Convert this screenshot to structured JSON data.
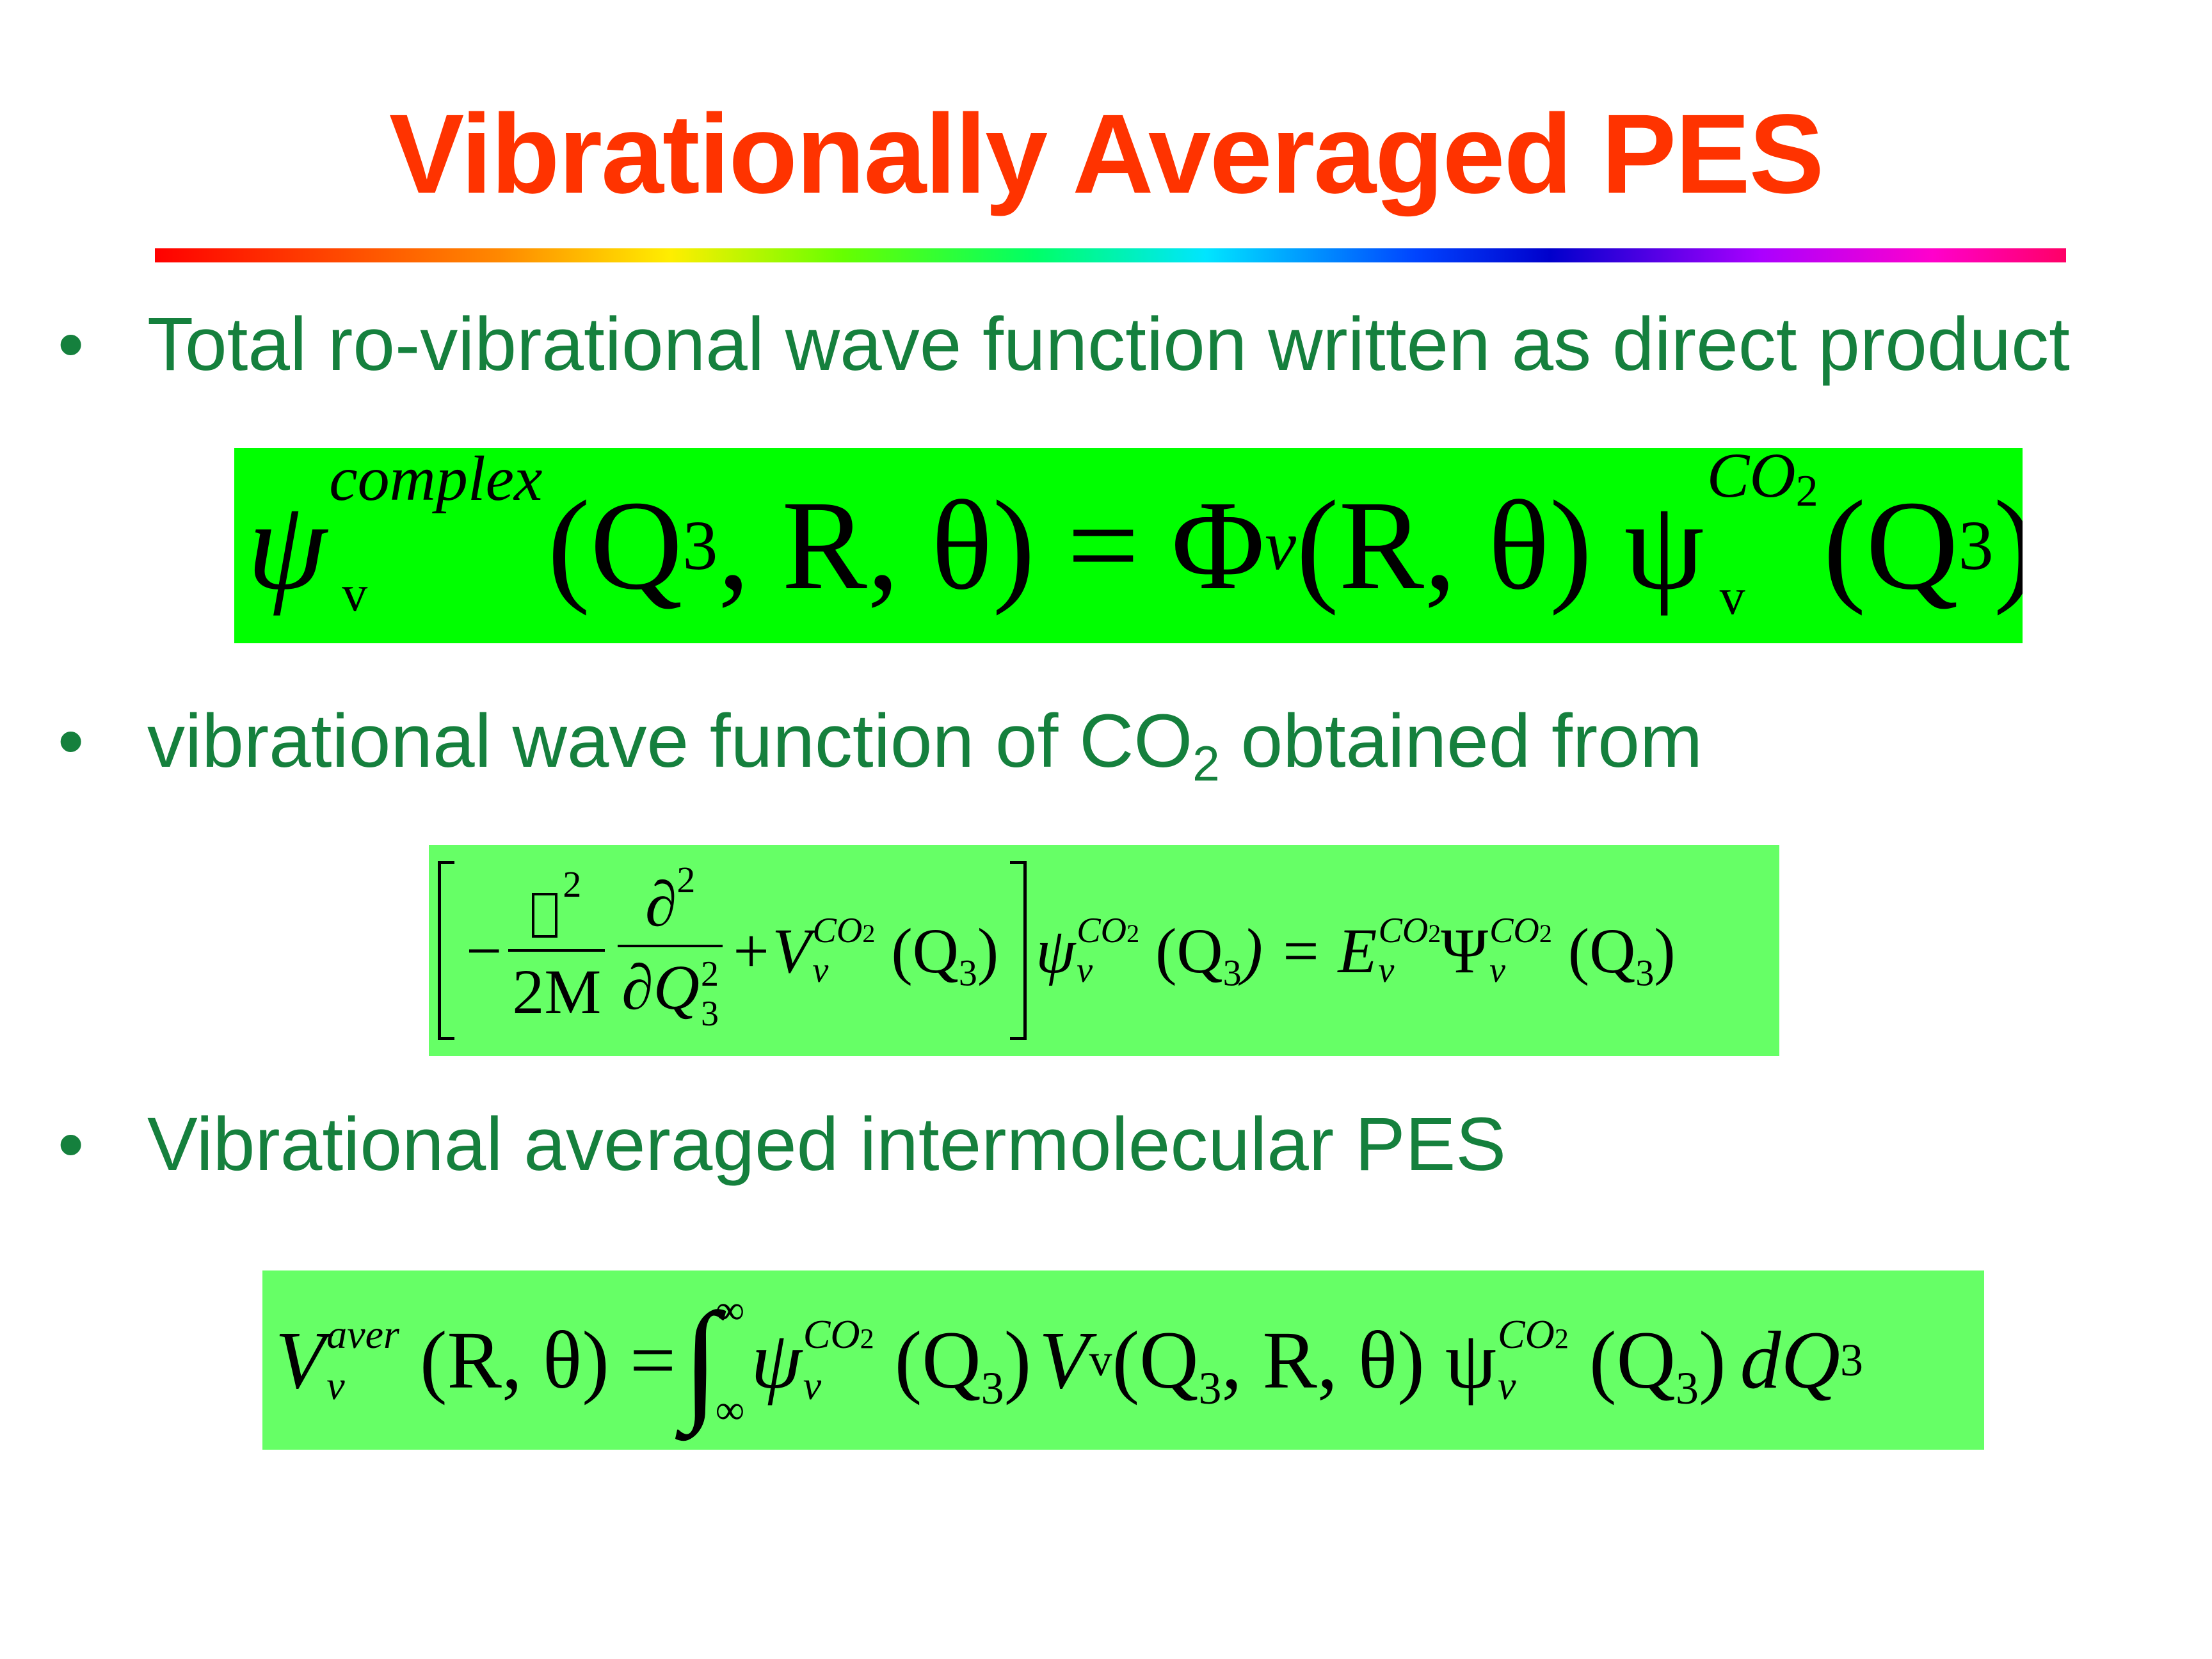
{
  "title": "Vibrationally Averaged PES",
  "bullet_symbol": "•",
  "bullets": [
    {
      "text": "Total ro-vibrational wave function written as direct product"
    },
    {
      "text_before": "vibrational wave function of CO",
      "subscript": "2",
      "text_after": " obtained from"
    },
    {
      "text": "Vibrational averaged intermolecular PES"
    }
  ],
  "equations": {
    "eq1": {
      "psi": "ψ",
      "sup": "complex",
      "sub": "v",
      "args_left": "(Q",
      "args_sub": "3",
      "args_rest": ", R, θ) = Φ",
      "phi_sub": "v",
      "phi_args": "(R, θ) ψ",
      "co2_sup": "CO",
      "co2_sup_sub": "2",
      "psi2_sub": "v",
      "last_args": "(Q",
      "last_sub": "3",
      "last_close": ")"
    },
    "eq2": {
      "minus": "−",
      "frac1_num_sup": "2",
      "frac1_den": "2M",
      "frac2_num": "∂",
      "frac2_num_sup": "2",
      "frac2_den": "∂Q",
      "frac2_den_sub": "3",
      "frac2_den_sup": "2",
      "plus": "+V",
      "sup_co": "CO",
      "sup_co_sub": "2",
      "sub_v": "v",
      "arg": "(Q",
      "arg_sub": "3",
      "arg_close": ")",
      "psi": "ψ",
      "eq_sign": ") = E",
      "Psi": "Ψ"
    },
    "eq3": {
      "V": "V",
      "sup": "aver",
      "sub": "v",
      "args": "(R, θ) =",
      "int_upper": "∞",
      "int_lower": "∞",
      "psi": "ψ",
      "co": "CO",
      "co_sub": "2",
      "q": "(Q",
      "q_sub": "3",
      "q_close": ")",
      "V2": "V",
      "V2_sub": "v",
      "mid_args": ", R, θ) ψ",
      "dQ": "dQ",
      "dQ_sub": "3"
    }
  },
  "colors": {
    "title": "#ff3300",
    "bullet_text": "#15803d",
    "eq1_bg": "#00ff00",
    "eq_bg": "#66ff66"
  }
}
